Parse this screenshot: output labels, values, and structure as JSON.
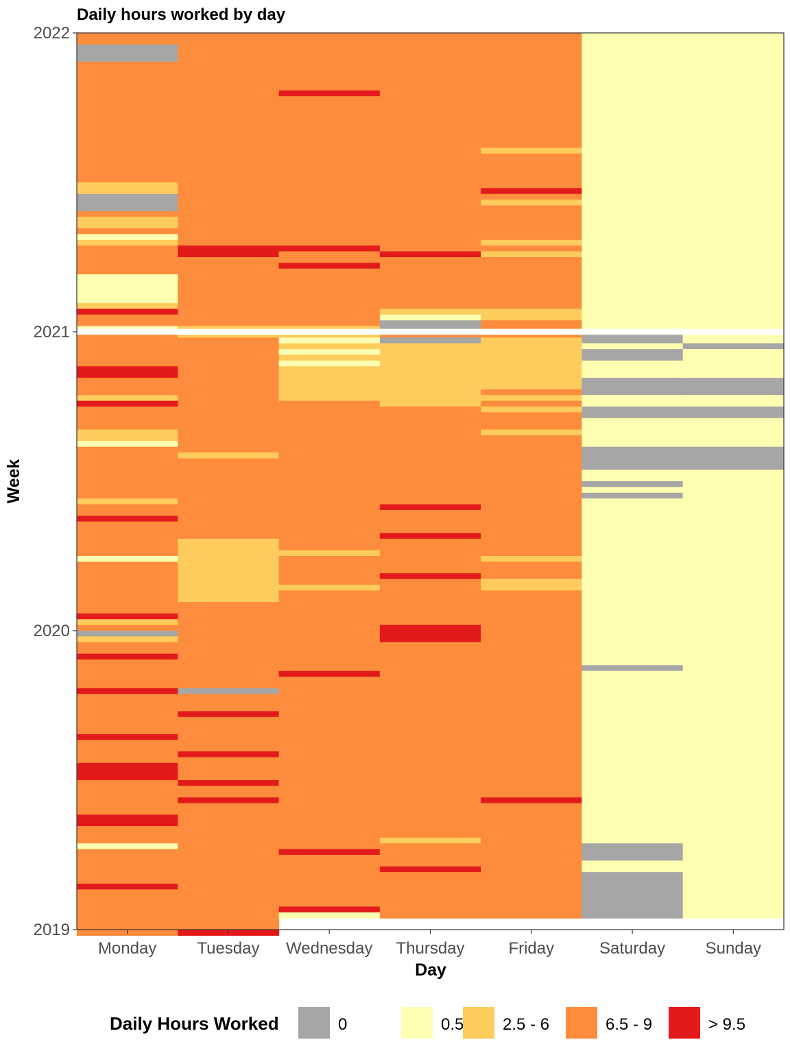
{
  "chart_data": {
    "type": "heatmap",
    "title": "Daily hours worked by day",
    "xlabel": "Day",
    "ylabel": "Week",
    "x_categories": [
      "Monday",
      "Tuesday",
      "Wednesday",
      "Thursday",
      "Friday",
      "Saturday",
      "Sunday"
    ],
    "y_ticks": [
      "2022",
      "2021",
      "2020",
      "2019"
    ],
    "y_range": [
      2019,
      2022
    ],
    "legend": {
      "title": "Daily Hours Worked",
      "placement": "bottom",
      "items": [
        {
          "label": "0",
          "color": "#a6a6a6"
        },
        {
          "label": "0.5 - 2",
          "color": "#ffffb2"
        },
        {
          "label": "2.5 - 6",
          "color": "#fecc5c"
        },
        {
          "label": "6.5 - 9",
          "color": "#fd8d3c"
        },
        {
          "label": "> 9.5",
          "color": "#e31a1c"
        }
      ]
    },
    "bins_per_year": 52,
    "gap_rows": [
      2020.99,
      2021.01
    ],
    "row_categories": {
      "Monday": "3300033333333333333333333322000322312333331111124331333333443332433332213333333332334333333133333333342302334333334333333343333444333333443331333333433333333",
      "Tuesday": "3333333333333333333333333333333333333443333333333332233333333333333333333233333333333333222222222223333333333333330333433333343333433433333333333333333333334",
      "Wednesday": "3333333333433333333333333333333333333433433333333332212121222222333333333333333333333333332333332333333333333334333333333333333333333333333333433333333341",
      "Thursday": "3333333333333333333333333333333333333343333333332100302222222222233333333333333333433334333333433333333444333333333333333333333333333333333323333433333333",
      "Friday": "3333333333333333333323333334323333332323333333332233322222222232323332333333333333333333333233322333333333333333333333333333333333333433333333333333333333",
      "Saturday": "1111111111111111111111111111111111111111111111111111001001110001100111110000110101111111111111111111111111111101111111111111111111111111111110001100000000",
      "Sunday": "1111111111111111111111111111111111111111111111111111110111110001100111110000111111111111111111111111111111111111111111111111111111111111111111111111111111"
    }
  }
}
